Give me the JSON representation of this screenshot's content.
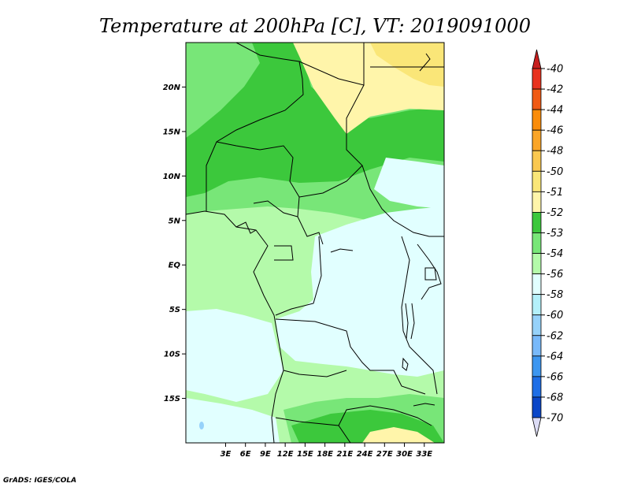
{
  "title": "Temperature at 200hPa [C], VT: 2019091000",
  "credit": "GrADS: IGES/COLA",
  "map": {
    "lat_range": [
      -20,
      25
    ],
    "lon_range": [
      -3,
      36
    ],
    "lat_ticks": [
      {
        "value": 20,
        "label": "20N"
      },
      {
        "value": 15,
        "label": "15N"
      },
      {
        "value": 10,
        "label": "10N"
      },
      {
        "value": 5,
        "label": "5N"
      },
      {
        "value": 0,
        "label": "EQ"
      },
      {
        "value": -5,
        "label": "5S"
      },
      {
        "value": -10,
        "label": "10S"
      },
      {
        "value": -15,
        "label": "15S"
      }
    ],
    "lon_ticks": [
      {
        "value": 3,
        "label": "3E"
      },
      {
        "value": 6,
        "label": "6E"
      },
      {
        "value": 9,
        "label": "9E"
      },
      {
        "value": 12,
        "label": "12E"
      },
      {
        "value": 15,
        "label": "15E"
      },
      {
        "value": 18,
        "label": "18E"
      },
      {
        "value": 21,
        "label": "21E"
      },
      {
        "value": 24,
        "label": "24E"
      },
      {
        "value": 27,
        "label": "27E"
      },
      {
        "value": 30,
        "label": "30E"
      },
      {
        "value": 33,
        "label": "33E"
      }
    ]
  },
  "colorbar": {
    "entries": [
      {
        "label": "-40",
        "color": "#e8321e"
      },
      {
        "label": "-42",
        "color": "#f05a14"
      },
      {
        "label": "-44",
        "color": "#fa8c0a"
      },
      {
        "label": "-46",
        "color": "#faa528"
      },
      {
        "label": "-48",
        "color": "#fac850"
      },
      {
        "label": "-50",
        "color": "#fae678"
      },
      {
        "label": "-51",
        "color": "#fff5aa"
      },
      {
        "label": "-52",
        "color": "#3cc83c"
      },
      {
        "label": "-53",
        "color": "#78e678"
      },
      {
        "label": "-54",
        "color": "#b4faaa"
      },
      {
        "label": "-56",
        "color": "#e1ffff"
      },
      {
        "label": "-58",
        "color": "#b4f0fa"
      },
      {
        "label": "-60",
        "color": "#96d2fa"
      },
      {
        "label": "-62",
        "color": "#78b9fa"
      },
      {
        "label": "-64",
        "color": "#3c96f0"
      },
      {
        "label": "-66",
        "color": "#1e6ee6"
      },
      {
        "label": "-68",
        "color": "#0a46c8"
      },
      {
        "label": "-70",
        "color": "#0a1e78"
      }
    ],
    "top_color": "#c81e1e",
    "bottom_color": "#dcdcf5"
  }
}
